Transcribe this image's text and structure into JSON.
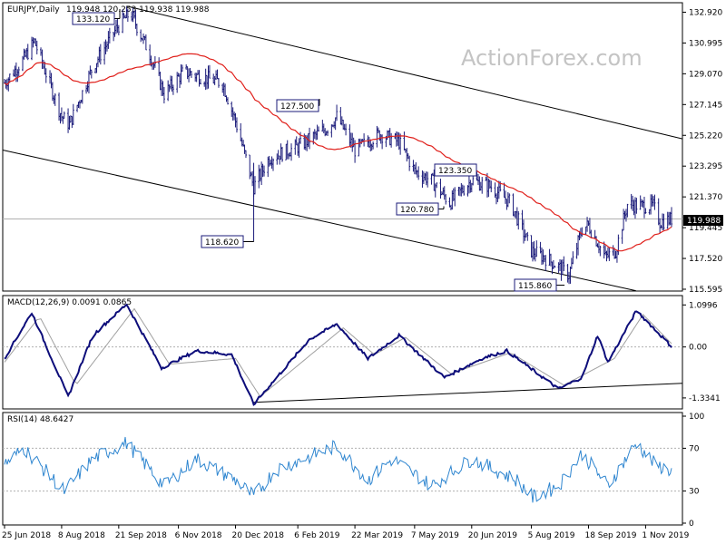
{
  "chart_data": {
    "type": "candlestick",
    "symbol_title": "EURJPY,Daily",
    "ohlc_header": "119.948 120.253 119.938 119.988",
    "watermark": "ActionForex.com",
    "last_price_label": "119.988",
    "x_ticks": [
      "25 Jun 2018",
      "8 Aug 2018",
      "21 Sep 2018",
      "6 Nov 2018",
      "20 Dec 2018",
      "6 Feb 2019",
      "22 Mar 2019",
      "7 May 2019",
      "20 Jun 2019",
      "5 Aug 2019",
      "18 Sep 2019",
      "1 Nov 2019"
    ],
    "price_panel": {
      "y_ticks": [
        "132.920",
        "130.995",
        "129.070",
        "127.145",
        "125.220",
        "123.295",
        "121.370",
        "119.445",
        "117.520",
        "115.595"
      ],
      "ylim": [
        115.595,
        133.4
      ],
      "moving_average": "red",
      "annotations": [
        {
          "text": "133.120",
          "value": 133.12
        },
        {
          "text": "127.500",
          "value": 127.5
        },
        {
          "text": "123.350",
          "value": 123.35
        },
        {
          "text": "120.780",
          "value": 120.78
        },
        {
          "text": "118.620",
          "value": 118.62
        },
        {
          "text": "115.860",
          "value": 115.86
        }
      ],
      "keypoints": [
        {
          "date": "2018-06-25",
          "close": 128.5
        },
        {
          "date": "2018-07-10",
          "close": 130.0
        },
        {
          "date": "2018-07-18",
          "close": 131.1
        },
        {
          "date": "2018-08-08",
          "close": 126.4
        },
        {
          "date": "2018-08-14",
          "close": 125.9
        },
        {
          "date": "2018-09-01",
          "close": 129.5
        },
        {
          "date": "2018-09-20",
          "close": 132.0
        },
        {
          "date": "2018-09-30",
          "close": 132.9
        },
        {
          "date": "2018-10-15",
          "close": 130.3
        },
        {
          "date": "2018-10-26",
          "close": 127.8
        },
        {
          "date": "2018-11-10",
          "close": 129.2
        },
        {
          "date": "2018-12-10",
          "close": 128.5
        },
        {
          "date": "2018-12-20",
          "close": 126.1
        },
        {
          "date": "2019-01-03",
          "close": 122.0
        },
        {
          "date": "2019-01-15",
          "close": 123.8
        },
        {
          "date": "2019-02-06",
          "close": 124.5
        },
        {
          "date": "2019-03-01",
          "close": 125.7
        },
        {
          "date": "2019-03-08",
          "close": 126.4
        },
        {
          "date": "2019-03-22",
          "close": 124.3
        },
        {
          "date": "2019-04-10",
          "close": 125.3
        },
        {
          "date": "2019-04-25",
          "close": 124.8
        },
        {
          "date": "2019-05-07",
          "close": 123.0
        },
        {
          "date": "2019-05-20",
          "close": 122.4
        },
        {
          "date": "2019-06-03",
          "close": 121.0
        },
        {
          "date": "2019-06-20",
          "close": 122.4
        },
        {
          "date": "2019-07-05",
          "close": 122.0
        },
        {
          "date": "2019-07-20",
          "close": 121.0
        },
        {
          "date": "2019-08-05",
          "close": 118.0
        },
        {
          "date": "2019-08-15",
          "close": 117.6
        },
        {
          "date": "2019-08-26",
          "close": 117.0
        },
        {
          "date": "2019-09-03",
          "close": 116.5
        },
        {
          "date": "2019-09-13",
          "close": 119.4
        },
        {
          "date": "2019-09-18",
          "close": 119.6
        },
        {
          "date": "2019-10-01",
          "close": 117.6
        },
        {
          "date": "2019-10-09",
          "close": 118.0
        },
        {
          "date": "2019-10-18",
          "close": 120.9
        },
        {
          "date": "2019-10-28",
          "close": 120.8
        },
        {
          "date": "2019-11-07",
          "close": 120.8
        },
        {
          "date": "2019-11-12",
          "close": 119.8
        },
        {
          "date": "2019-11-21",
          "close": 119.99
        }
      ],
      "channel_upper": [
        {
          "date": "2018-09-27",
          "value": 133.3
        },
        {
          "date": "2019-11-25",
          "value": 125.0
        }
      ],
      "channel_lower": [
        {
          "date": "2018-06-25",
          "value": 124.3
        },
        {
          "date": "2019-09-23",
          "value": 115.7
        }
      ]
    },
    "macd_panel": {
      "label": "MACD(12,26,9) 0.0091 0.0865",
      "y_ticks": [
        "1.0996",
        "0.00",
        "-1.3341"
      ],
      "ylim": [
        -1.55,
        1.25
      ],
      "keypoints": [
        {
          "date": "2018-06-25",
          "value": -0.3
        },
        {
          "date": "2018-07-16",
          "value": 0.9
        },
        {
          "date": "2018-08-13",
          "value": -1.3
        },
        {
          "date": "2018-09-01",
          "value": 0.3
        },
        {
          "date": "2018-09-27",
          "value": 1.12
        },
        {
          "date": "2018-10-24",
          "value": -0.55
        },
        {
          "date": "2018-11-20",
          "value": -0.1
        },
        {
          "date": "2018-12-17",
          "value": -0.2
        },
        {
          "date": "2019-01-03",
          "value": -1.5
        },
        {
          "date": "2019-02-15",
          "value": 0.2
        },
        {
          "date": "2019-03-08",
          "value": 0.6
        },
        {
          "date": "2019-04-01",
          "value": -0.3
        },
        {
          "date": "2019-04-25",
          "value": 0.3
        },
        {
          "date": "2019-05-30",
          "value": -0.8
        },
        {
          "date": "2019-06-28",
          "value": -0.3
        },
        {
          "date": "2019-07-17",
          "value": -0.1
        },
        {
          "date": "2019-08-26",
          "value": -1.1
        },
        {
          "date": "2019-09-13",
          "value": -0.8
        },
        {
          "date": "2019-09-25",
          "value": 0.3
        },
        {
          "date": "2019-10-03",
          "value": -0.4
        },
        {
          "date": "2019-10-25",
          "value": 0.95
        },
        {
          "date": "2019-11-21",
          "value": 0.0091
        }
      ],
      "signal_keypoints": [
        {
          "date": "2018-06-25",
          "value": -0.4
        },
        {
          "date": "2018-07-22",
          "value": 0.8
        },
        {
          "date": "2018-08-19",
          "value": -1.0
        },
        {
          "date": "2018-10-03",
          "value": 1.0
        },
        {
          "date": "2018-10-30",
          "value": -0.45
        },
        {
          "date": "2018-12-20",
          "value": -0.3
        },
        {
          "date": "2019-01-08",
          "value": -1.3
        },
        {
          "date": "2019-03-13",
          "value": 0.5
        },
        {
          "date": "2019-04-06",
          "value": -0.2
        },
        {
          "date": "2019-04-30",
          "value": 0.25
        },
        {
          "date": "2019-06-04",
          "value": -0.7
        },
        {
          "date": "2019-07-20",
          "value": -0.15
        },
        {
          "date": "2019-08-30",
          "value": -1.0
        },
        {
          "date": "2019-10-08",
          "value": -0.3
        },
        {
          "date": "2019-10-30",
          "value": 0.85
        },
        {
          "date": "2019-11-21",
          "value": 0.0865
        }
      ],
      "trendline": [
        {
          "date": "2019-01-03",
          "value": -1.45
        },
        {
          "date": "2019-11-25",
          "value": -0.95
        }
      ]
    },
    "rsi_panel": {
      "label": "RSI(14) 48.6427",
      "y_ticks": [
        "100",
        "70",
        "30",
        "0"
      ],
      "ylim": [
        0,
        100
      ],
      "levels": [
        70,
        30
      ],
      "keypoints": [
        {
          "date": "2018-06-25",
          "value": 55
        },
        {
          "date": "2018-07-10",
          "value": 70
        },
        {
          "date": "2018-08-10",
          "value": 30
        },
        {
          "date": "2018-09-01",
          "value": 60
        },
        {
          "date": "2018-09-27",
          "value": 75
        },
        {
          "date": "2018-10-26",
          "value": 35
        },
        {
          "date": "2018-11-20",
          "value": 60
        },
        {
          "date": "2018-12-20",
          "value": 40
        },
        {
          "date": "2019-01-03",
          "value": 25
        },
        {
          "date": "2019-01-20",
          "value": 50
        },
        {
          "date": "2019-03-08",
          "value": 72
        },
        {
          "date": "2019-04-01",
          "value": 40
        },
        {
          "date": "2019-04-20",
          "value": 60
        },
        {
          "date": "2019-05-20",
          "value": 35
        },
        {
          "date": "2019-06-20",
          "value": 60
        },
        {
          "date": "2019-07-25",
          "value": 40
        },
        {
          "date": "2019-08-06",
          "value": 24
        },
        {
          "date": "2019-08-26",
          "value": 35
        },
        {
          "date": "2019-09-13",
          "value": 65
        },
        {
          "date": "2019-10-03",
          "value": 35
        },
        {
          "date": "2019-10-25",
          "value": 75
        },
        {
          "date": "2019-11-08",
          "value": 55
        },
        {
          "date": "2019-11-21",
          "value": 48.6427
        }
      ]
    }
  }
}
